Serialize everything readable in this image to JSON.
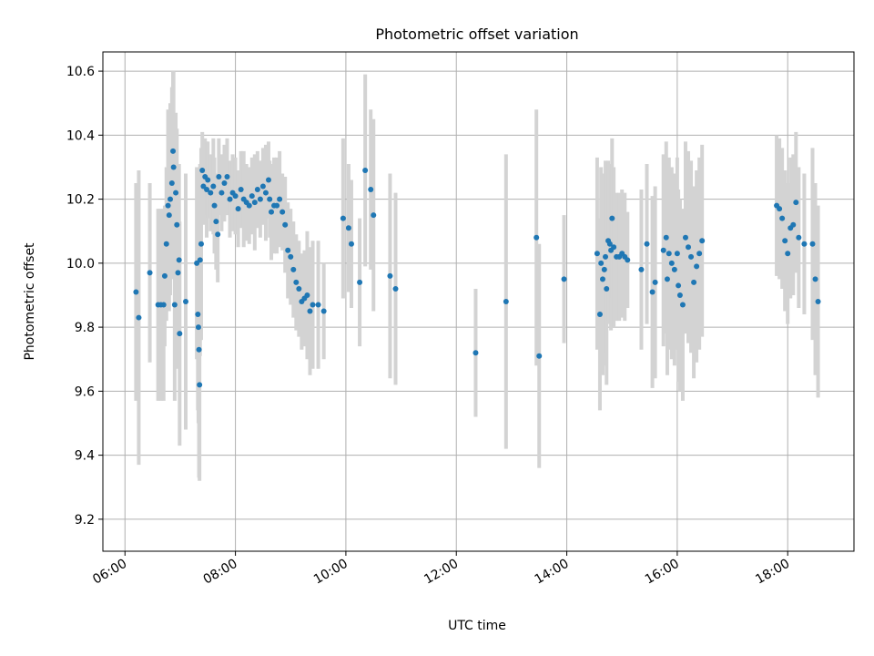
{
  "chart_data": {
    "type": "scatter",
    "title": "Photometric offset variation",
    "xlabel": "UTC time",
    "ylabel": "Photometric offset",
    "x_unit": "hours",
    "xlim": [
      5.6,
      19.2
    ],
    "ylim": [
      9.1,
      10.66
    ],
    "x_ticks": [
      6,
      8,
      10,
      12,
      14,
      16,
      18
    ],
    "x_tick_labels": [
      "06:00",
      "08:00",
      "10:00",
      "12:00",
      "14:00",
      "16:00",
      "18:00"
    ],
    "y_ticks": [
      9.2,
      9.4,
      9.6,
      9.8,
      10.0,
      10.2,
      10.4,
      10.6
    ],
    "y_tick_labels": [
      "9.2",
      "9.4",
      "9.6",
      "9.8",
      "10.0",
      "10.2",
      "10.4",
      "10.6"
    ],
    "grid": true,
    "colors": {
      "point": "#1f77b4",
      "errorbar": "#d3d3d3",
      "grid": "#b0b0b0"
    },
    "series": [
      {
        "points": [
          [
            6.2,
            9.91,
            0.34
          ],
          [
            6.25,
            9.83,
            0.46
          ],
          [
            6.45,
            9.97,
            0.28
          ],
          [
            6.6,
            9.87,
            0.3
          ],
          [
            6.65,
            9.87,
            0.3
          ],
          [
            6.7,
            9.87,
            0.3
          ],
          [
            6.72,
            9.96,
            0.22
          ],
          [
            6.75,
            10.06,
            0.24
          ],
          [
            6.78,
            10.18,
            0.3
          ],
          [
            6.8,
            10.15,
            0.3
          ],
          [
            6.82,
            10.2,
            0.3
          ],
          [
            6.85,
            10.25,
            0.3
          ],
          [
            6.87,
            10.35,
            0.25
          ],
          [
            6.88,
            10.3,
            0.3
          ],
          [
            6.9,
            9.87,
            0.3
          ],
          [
            6.92,
            10.22,
            0.25
          ],
          [
            6.94,
            10.12,
            0.3
          ],
          [
            6.96,
            9.97,
            0.3
          ],
          [
            6.98,
            10.01,
            0.3
          ],
          [
            6.99,
            9.78,
            0.35
          ],
          [
            7.1,
            9.88,
            0.4
          ],
          [
            7.3,
            10.0,
            0.3
          ],
          [
            7.32,
            9.84,
            0.3
          ],
          [
            7.33,
            9.8,
            0.3
          ],
          [
            7.34,
            9.73,
            0.4
          ],
          [
            7.35,
            9.62,
            0.3
          ],
          [
            7.36,
            10.01,
            0.3
          ],
          [
            7.38,
            10.06,
            0.3
          ],
          [
            7.4,
            10.29,
            0.12
          ],
          [
            7.42,
            10.24,
            0.12
          ],
          [
            7.45,
            10.27,
            0.12
          ],
          [
            7.48,
            10.23,
            0.15
          ],
          [
            7.5,
            10.26,
            0.12
          ],
          [
            7.55,
            10.22,
            0.12
          ],
          [
            7.6,
            10.24,
            0.15
          ],
          [
            7.62,
            10.18,
            0.15
          ],
          [
            7.65,
            10.13,
            0.15
          ],
          [
            7.68,
            10.09,
            0.15
          ],
          [
            7.7,
            10.27,
            0.12
          ],
          [
            7.75,
            10.22,
            0.12
          ],
          [
            7.8,
            10.25,
            0.12
          ],
          [
            7.85,
            10.27,
            0.12
          ],
          [
            7.9,
            10.2,
            0.12
          ],
          [
            7.95,
            10.22,
            0.12
          ],
          [
            8.0,
            10.21,
            0.12
          ],
          [
            8.05,
            10.17,
            0.12
          ],
          [
            8.1,
            10.23,
            0.12
          ],
          [
            8.15,
            10.2,
            0.15
          ],
          [
            8.2,
            10.19,
            0.12
          ],
          [
            8.25,
            10.18,
            0.12
          ],
          [
            8.3,
            10.21,
            0.12
          ],
          [
            8.35,
            10.19,
            0.15
          ],
          [
            8.4,
            10.23,
            0.12
          ],
          [
            8.45,
            10.2,
            0.12
          ],
          [
            8.5,
            10.24,
            0.12
          ],
          [
            8.55,
            10.22,
            0.15
          ],
          [
            8.6,
            10.26,
            0.12
          ],
          [
            8.62,
            10.2,
            0.12
          ],
          [
            8.65,
            10.16,
            0.15
          ],
          [
            8.7,
            10.18,
            0.15
          ],
          [
            8.75,
            10.18,
            0.15
          ],
          [
            8.8,
            10.2,
            0.15
          ],
          [
            8.85,
            10.16,
            0.12
          ],
          [
            8.9,
            10.12,
            0.15
          ],
          [
            8.95,
            10.04,
            0.15
          ],
          [
            9.0,
            10.02,
            0.15
          ],
          [
            9.05,
            9.98,
            0.15
          ],
          [
            9.1,
            9.94,
            0.15
          ],
          [
            9.15,
            9.92,
            0.15
          ],
          [
            9.2,
            9.88,
            0.15
          ],
          [
            9.25,
            9.89,
            0.15
          ],
          [
            9.3,
            9.9,
            0.2
          ],
          [
            9.35,
            9.85,
            0.2
          ],
          [
            9.4,
            9.87,
            0.2
          ],
          [
            9.5,
            9.87,
            0.2
          ],
          [
            9.6,
            9.85,
            0.15
          ],
          [
            9.95,
            10.14,
            0.25
          ],
          [
            10.05,
            10.11,
            0.2
          ],
          [
            10.1,
            10.06,
            0.2
          ],
          [
            10.25,
            9.94,
            0.2
          ],
          [
            10.35,
            10.29,
            0.3
          ],
          [
            10.45,
            10.23,
            0.25
          ],
          [
            10.5,
            10.15,
            0.3
          ],
          [
            10.8,
            9.96,
            0.32
          ],
          [
            10.9,
            9.92,
            0.3
          ],
          [
            12.35,
            9.72,
            0.2
          ],
          [
            12.9,
            9.88,
            0.46
          ],
          [
            13.45,
            10.08,
            0.4
          ],
          [
            13.5,
            9.71,
            0.35
          ],
          [
            13.95,
            9.95,
            0.2
          ],
          [
            14.55,
            10.03,
            0.3
          ],
          [
            14.6,
            9.84,
            0.3
          ],
          [
            14.62,
            10.0,
            0.3
          ],
          [
            14.65,
            9.95,
            0.3
          ],
          [
            14.68,
            9.98,
            0.3
          ],
          [
            14.7,
            10.02,
            0.3
          ],
          [
            14.72,
            9.92,
            0.3
          ],
          [
            14.75,
            10.07,
            0.25
          ],
          [
            14.78,
            10.06,
            0.25
          ],
          [
            14.8,
            10.04,
            0.25
          ],
          [
            14.82,
            10.14,
            0.25
          ],
          [
            14.85,
            10.05,
            0.25
          ],
          [
            14.9,
            10.02,
            0.2
          ],
          [
            14.95,
            10.02,
            0.2
          ],
          [
            15.0,
            10.03,
            0.2
          ],
          [
            15.05,
            10.02,
            0.2
          ],
          [
            15.1,
            10.01,
            0.15
          ],
          [
            15.35,
            9.98,
            0.25
          ],
          [
            15.45,
            10.06,
            0.25
          ],
          [
            15.55,
            9.91,
            0.3
          ],
          [
            15.6,
            9.94,
            0.3
          ],
          [
            15.75,
            10.04,
            0.3
          ],
          [
            15.8,
            10.08,
            0.3
          ],
          [
            15.82,
            9.95,
            0.3
          ],
          [
            15.85,
            10.03,
            0.3
          ],
          [
            15.9,
            10.0,
            0.3
          ],
          [
            15.95,
            9.98,
            0.3
          ],
          [
            16.0,
            10.03,
            0.3
          ],
          [
            16.02,
            9.93,
            0.3
          ],
          [
            16.05,
            9.9,
            0.3
          ],
          [
            16.1,
            9.87,
            0.3
          ],
          [
            16.15,
            10.08,
            0.3
          ],
          [
            16.2,
            10.05,
            0.3
          ],
          [
            16.25,
            10.02,
            0.3
          ],
          [
            16.3,
            9.94,
            0.3
          ],
          [
            16.35,
            9.99,
            0.3
          ],
          [
            16.4,
            10.03,
            0.3
          ],
          [
            16.45,
            10.07,
            0.3
          ],
          [
            17.8,
            10.18,
            0.22
          ],
          [
            17.85,
            10.17,
            0.22
          ],
          [
            17.9,
            10.14,
            0.22
          ],
          [
            17.95,
            10.07,
            0.22
          ],
          [
            18.0,
            10.03,
            0.22
          ],
          [
            18.05,
            10.11,
            0.22
          ],
          [
            18.1,
            10.12,
            0.22
          ],
          [
            18.15,
            10.19,
            0.22
          ],
          [
            18.2,
            10.08,
            0.22
          ],
          [
            18.3,
            10.06,
            0.22
          ],
          [
            18.45,
            10.06,
            0.3
          ],
          [
            18.5,
            9.95,
            0.3
          ],
          [
            18.55,
            9.88,
            0.3
          ]
        ]
      }
    ]
  }
}
